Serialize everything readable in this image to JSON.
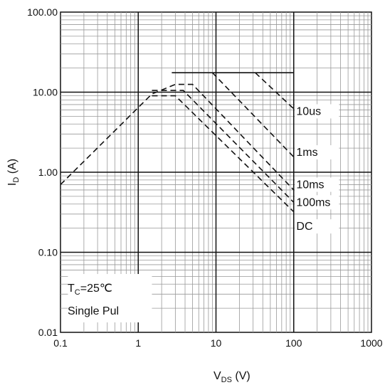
{
  "chart_data": {
    "type": "line",
    "x_scale": "log",
    "y_scale": "log",
    "xlim": [
      0.1,
      1000
    ],
    "ylim": [
      0.01,
      100
    ],
    "grid": true,
    "xlabel": {
      "main": "V",
      "sub": "DS",
      "unit": " (V)"
    },
    "ylabel": {
      "main": "I",
      "sub": "D",
      "unit": " (A)"
    },
    "x_ticks": [
      "0.1",
      "1",
      "10",
      "100",
      "1000"
    ],
    "y_ticks": [
      "0.01",
      "0.10",
      "1.00",
      "10.00",
      "100.00"
    ],
    "series": [
      {
        "name": "10us",
        "x": [
          2.7,
          100
        ],
        "y": [
          17.5,
          17.5
        ]
      },
      {
        "name": "",
        "x": [
          32,
          100
        ],
        "y": [
          17.5,
          6.2
        ]
      },
      {
        "name": "1ms",
        "x": [
          9,
          100
        ],
        "y": [
          17.5,
          1.55
        ]
      },
      {
        "name": "10ms",
        "x": [
          0.1,
          1.5,
          3.0,
          5.0,
          100
        ],
        "y": [
          0.7,
          9.5,
          12.5,
          12.5,
          0.6
        ]
      },
      {
        "name": "100ms",
        "x": [
          1.5,
          3.8,
          100
        ],
        "y": [
          10.5,
          10.5,
          0.42
        ]
      },
      {
        "name": "DC",
        "x": [
          1.5,
          3.0,
          100
        ],
        "y": [
          9.0,
          9.0,
          0.32
        ]
      }
    ],
    "annotations": [
      {
        "text": "10us",
        "x": 108,
        "y": 5.2
      },
      {
        "text": "1ms",
        "x": 108,
        "y": 1.6
      },
      {
        "text": "10ms",
        "x": 108,
        "y": 0.63
      },
      {
        "text": "100ms",
        "x": 108,
        "y": 0.38
      },
      {
        "text": "DC",
        "x": 108,
        "y": 0.19
      }
    ],
    "conditions": {
      "tc": {
        "main": "T",
        "sub": "C",
        "rest": "=25℃"
      },
      "pulse": "Single Pul"
    }
  }
}
